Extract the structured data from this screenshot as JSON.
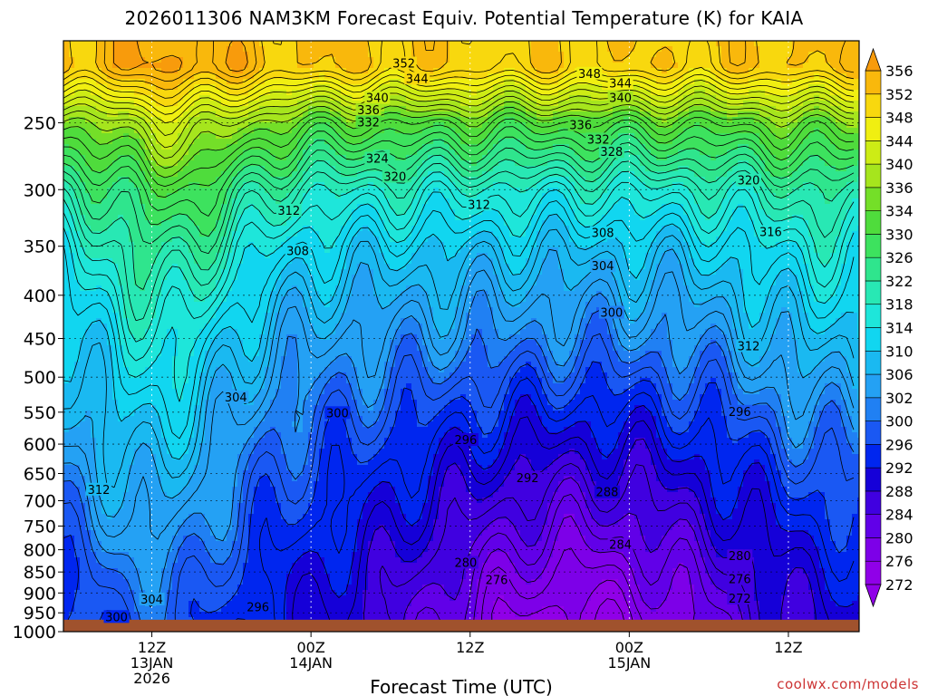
{
  "chart_data": {
    "type": "contour",
    "title": "2026011306 NAM3KM Forecast Equiv. Potential Temperature (K) for KAIA",
    "xlabel": "Forecast Time (UTC)",
    "ylabel": "",
    "x_ticks": [
      {
        "hour": 12,
        "label": [
          "12Z",
          "13JAN",
          "2026"
        ]
      },
      {
        "hour": 30,
        "label": [
          "00Z",
          "14JAN"
        ]
      },
      {
        "hour": 48,
        "label": [
          "12Z"
        ]
      },
      {
        "hour": 66,
        "label": [
          "00Z",
          "15JAN"
        ]
      },
      {
        "hour": 84,
        "label": [
          "12Z"
        ]
      }
    ],
    "xlim_hours": [
      2,
      92
    ],
    "y_scale": "log-pressure",
    "ylim": [
      200,
      1000
    ],
    "y_ticks": [
      250,
      300,
      350,
      400,
      450,
      500,
      550,
      600,
      650,
      700,
      750,
      800,
      850,
      900,
      950,
      1000
    ],
    "grid": true,
    "colorbar": {
      "levels": [
        272,
        276,
        280,
        284,
        288,
        292,
        296,
        300,
        302,
        306,
        310,
        314,
        318,
        322,
        326,
        330,
        334,
        336,
        340,
        344,
        348,
        352,
        356
      ],
      "colors": [
        "#9000e8",
        "#7d00e8",
        "#6100e8",
        "#4000e0",
        "#1500d8",
        "#0026ef",
        "#1a58f3",
        "#2080f3",
        "#24a1f4",
        "#1ab9f1",
        "#11d6f0",
        "#1ee6da",
        "#28e8b4",
        "#2fe58d",
        "#3de25e",
        "#4fdc3c",
        "#74df28",
        "#a6e51d",
        "#cdec15",
        "#f0ef11",
        "#f8d80e",
        "#f9b80c",
        "#f89b0c"
      ]
    },
    "surface_color": "#a0522d",
    "contour_labels": [
      {
        "v": "352",
        "h": 40.5,
        "p": 213
      },
      {
        "v": "344",
        "h": 42,
        "p": 222
      },
      {
        "v": "348",
        "h": 61.5,
        "p": 219
      },
      {
        "v": "344",
        "h": 65,
        "p": 225
      },
      {
        "v": "340",
        "h": 37.5,
        "p": 234
      },
      {
        "v": "340",
        "h": 65,
        "p": 234
      },
      {
        "v": "336",
        "h": 36.5,
        "p": 242
      },
      {
        "v": "332",
        "h": 36.5,
        "p": 250
      },
      {
        "v": "336",
        "h": 60.5,
        "p": 252
      },
      {
        "v": "332",
        "h": 62.5,
        "p": 262
      },
      {
        "v": "328",
        "h": 64,
        "p": 271
      },
      {
        "v": "324",
        "h": 37.5,
        "p": 276
      },
      {
        "v": "320",
        "h": 39.5,
        "p": 290
      },
      {
        "v": "320",
        "h": 79.5,
        "p": 293
      },
      {
        "v": "312",
        "h": 27.5,
        "p": 318
      },
      {
        "v": "312",
        "h": 49,
        "p": 313
      },
      {
        "v": "308",
        "h": 63,
        "p": 338
      },
      {
        "v": "316",
        "h": 82,
        "p": 337
      },
      {
        "v": "308",
        "h": 28.5,
        "p": 355
      },
      {
        "v": "304",
        "h": 63,
        "p": 370
      },
      {
        "v": "300",
        "h": 64,
        "p": 420
      },
      {
        "v": "312",
        "h": 79.5,
        "p": 460
      },
      {
        "v": "304",
        "h": 21.5,
        "p": 529
      },
      {
        "v": "300",
        "h": 33,
        "p": 552
      },
      {
        "v": "296",
        "h": 78.5,
        "p": 550
      },
      {
        "v": "296",
        "h": 47.5,
        "p": 594
      },
      {
        "v": "292",
        "h": 54.5,
        "p": 659
      },
      {
        "v": "312",
        "h": 6,
        "p": 680
      },
      {
        "v": "288",
        "h": 63.5,
        "p": 685
      },
      {
        "v": "284",
        "h": 65,
        "p": 790
      },
      {
        "v": "280",
        "h": 47.5,
        "p": 830
      },
      {
        "v": "280",
        "h": 78.5,
        "p": 815
      },
      {
        "v": "276",
        "h": 51,
        "p": 870
      },
      {
        "v": "276",
        "h": 78.5,
        "p": 868
      },
      {
        "v": "272",
        "h": 78.5,
        "p": 915
      },
      {
        "v": "304",
        "h": 12,
        "p": 917
      },
      {
        "v": "296",
        "h": 24,
        "p": 937
      },
      {
        "v": "300",
        "h": 8,
        "p": 962
      }
    ]
  },
  "credit": "coolwx.com/models"
}
